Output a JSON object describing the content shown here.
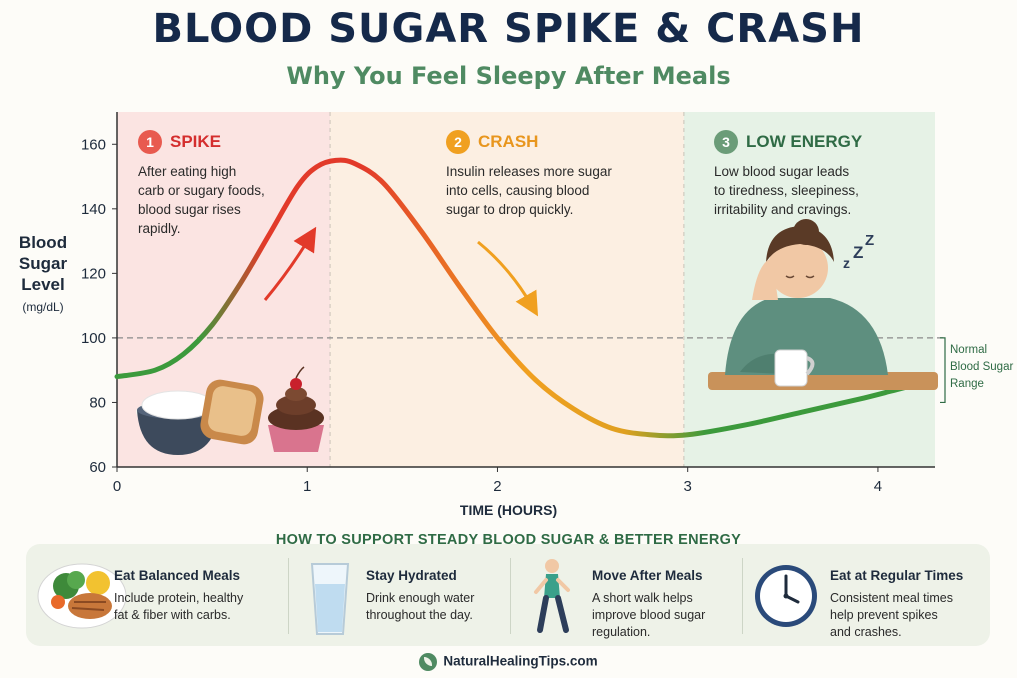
{
  "header": {
    "title": "BLOOD SUGAR SPIKE & CRASH",
    "subtitle": "Why You Feel Sleepy After Meals"
  },
  "chart_data": {
    "type": "line",
    "title": "BLOOD SUGAR SPIKE & CRASH",
    "subtitle": "Why You Feel Sleepy After Meals",
    "ylabel": "Blood Sugar Level",
    "yunit": "(mg/dL)",
    "xlabel": "TIME (HOURS)",
    "xlim": [
      0,
      4.3
    ],
    "ylim": [
      60,
      170
    ],
    "xticks": [
      0,
      1,
      2,
      3,
      4
    ],
    "yticks": [
      60,
      80,
      100,
      120,
      140,
      160
    ],
    "grid": false,
    "series": [
      {
        "x": [
          0,
          0.2,
          0.35,
          0.5,
          0.65,
          0.8,
          0.95,
          1.05,
          1.15,
          1.25,
          1.4,
          1.6,
          1.8,
          2.0,
          2.2,
          2.4,
          2.6,
          2.8,
          3.0,
          3.3,
          3.6,
          3.9,
          4.1,
          4.3
        ],
        "y": [
          88,
          90,
          95,
          104,
          117,
          132,
          147,
          153,
          155,
          154,
          148,
          133,
          116,
          100,
          87,
          78,
          72,
          70,
          70,
          73,
          77,
          81,
          84,
          87
        ]
      }
    ],
    "reference_band": {
      "y": 100,
      "label_lines": [
        "Normal",
        "Blood Sugar",
        "Range"
      ]
    },
    "phases": [
      {
        "num": "1",
        "label": "SPIKE",
        "text_lines": [
          "After eating high",
          "carb or sugary foods,",
          "blood sugar rises",
          "rapidly."
        ],
        "x_start": 0,
        "x_end": 1.12,
        "color": "#d42e2e",
        "bg": "#fbe4e2"
      },
      {
        "num": "2",
        "label": "CRASH",
        "text_lines": [
          "Insulin releases more sugar",
          "into cells, causing blood",
          "sugar to drop quickly."
        ],
        "x_start": 1.12,
        "x_end": 2.98,
        "color": "#e8961e",
        "bg": "#fcefe2"
      },
      {
        "num": "3",
        "label": "LOW ENERGY",
        "text_lines": [
          "Low blood sugar leads",
          "to tiredness, sleepiness,",
          "irritability and cravings."
        ],
        "x_start": 2.98,
        "x_end": 4.3,
        "color": "#4f8a62",
        "bg": "#e6f2e6"
      }
    ]
  },
  "tips": {
    "title": "HOW TO SUPPORT STEADY BLOOD SUGAR & BETTER ENERGY",
    "items": [
      {
        "title": "Eat Balanced Meals",
        "text_lines": [
          "Include protein, healthy",
          "fat & fiber with carbs."
        ],
        "icon": "balanced-plate-icon"
      },
      {
        "title": "Stay Hydrated",
        "text_lines": [
          "Drink enough water",
          "throughout the day."
        ],
        "icon": "water-glass-icon"
      },
      {
        "title": "Move After Meals",
        "text_lines": [
          "A short walk helps",
          "improve blood sugar",
          "regulation."
        ],
        "icon": "walking-person-icon"
      },
      {
        "title": "Eat at Regular Times",
        "text_lines": [
          "Consistent meal times",
          "help prevent spikes",
          "and crashes."
        ],
        "icon": "clock-icon"
      }
    ]
  },
  "footer": {
    "site": "NaturalHealingTips.com",
    "icon": "leaf-icon"
  }
}
